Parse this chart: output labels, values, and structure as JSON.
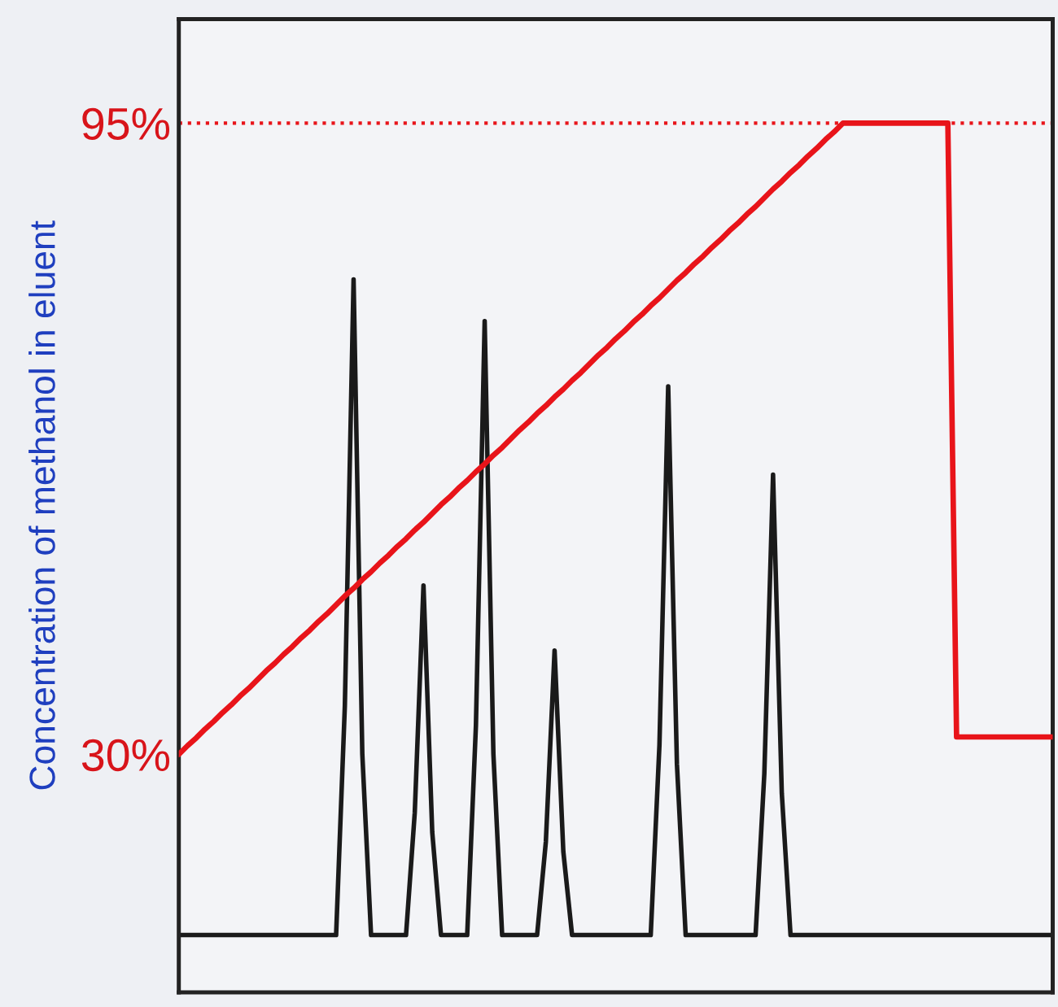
{
  "chart_data": {
    "type": "line",
    "ylabel": "Concentration of methanol in eluent",
    "ylim": [
      5.5,
      105.7
    ],
    "yticks": [
      {
        "value": 30,
        "label": "30%"
      },
      {
        "value": 95,
        "label": "95%"
      }
    ],
    "tick_labels": "y",
    "grid": false,
    "legend": false,
    "marker": "none",
    "line_style": "solid",
    "categories": [
      null,
      null,
      null,
      null,
      null,
      null,
      null,
      null,
      null,
      null,
      null,
      null,
      null,
      null,
      null,
      null,
      null,
      null,
      null,
      null,
      null,
      null,
      null,
      null,
      null,
      null,
      null,
      null,
      null,
      null,
      null,
      null,
      null,
      null,
      null,
      null,
      null,
      null,
      null,
      null,
      null,
      null,
      null,
      null,
      null,
      null,
      null,
      null,
      null,
      null,
      null,
      null,
      null,
      null,
      null,
      null,
      null,
      null,
      null,
      null,
      null,
      null,
      null,
      null,
      null,
      null,
      null,
      null,
      null,
      null,
      null,
      null,
      null,
      null,
      null,
      null,
      null,
      null,
      null,
      null,
      null,
      null,
      null,
      null,
      null,
      null,
      null,
      null,
      null,
      null,
      null,
      null,
      null,
      null,
      null,
      null,
      null,
      null,
      null,
      null,
      null
    ],
    "series": [
      {
        "color": "#e8141a",
        "values": [
          30.0,
          30.9,
          31.7,
          32.6,
          33.4,
          34.3,
          35.1,
          36.0,
          36.8,
          37.7,
          38.6,
          39.4,
          40.3,
          41.1,
          42.0,
          42.8,
          43.7,
          44.5,
          45.4,
          46.3,
          47.1,
          48.0,
          48.8,
          49.7,
          50.5,
          51.4,
          52.2,
          53.1,
          53.9,
          54.8,
          55.7,
          56.5,
          57.4,
          58.2,
          59.1,
          59.9,
          60.8,
          61.6,
          62.5,
          63.4,
          64.2,
          65.1,
          65.9,
          66.8,
          67.6,
          68.5,
          69.3,
          70.2,
          71.1,
          71.9,
          72.8,
          73.6,
          74.5,
          75.3,
          76.2,
          77.0,
          77.9,
          78.8,
          79.6,
          80.5,
          81.3,
          82.2,
          83.0,
          83.9,
          84.7,
          85.6,
          86.4,
          87.3,
          88.2,
          89.0,
          89.9,
          90.7,
          91.6,
          92.4,
          93.3,
          94.1,
          95.0,
          95,
          95,
          95,
          95,
          95,
          95,
          95,
          95,
          95,
          95,
          95,
          95,
          31.8,
          31.8,
          31.8,
          31.8,
          31.8,
          31.8,
          31.8,
          31.8,
          31.8,
          31.8,
          31.8,
          31.8
        ]
      },
      {
        "color": "#1a1a1a",
        "values": [
          11.4,
          11.4,
          11.4,
          11.4,
          11.4,
          11.4,
          11.4,
          11.4,
          11.4,
          11.4,
          11.4,
          11.4,
          11.4,
          11.4,
          11.4,
          11.4,
          11.4,
          11.4,
          11.4,
          35,
          78.9,
          30,
          11.4,
          11.4,
          11.4,
          11.4,
          11.4,
          24,
          47.4,
          22,
          11.4,
          11.4,
          11.4,
          11.4,
          33,
          74.6,
          30,
          11.4,
          11.4,
          11.4,
          11.4,
          11.4,
          21,
          40.7,
          20,
          11.4,
          11.4,
          11.4,
          11.4,
          11.4,
          11.4,
          11.4,
          11.4,
          11.4,
          11.4,
          31,
          67.9,
          29,
          11.4,
          11.4,
          11.4,
          11.4,
          11.4,
          11.4,
          11.4,
          11.4,
          11.4,
          28,
          58.8,
          26,
          11.4,
          11.4,
          11.4,
          11.4,
          11.4,
          11.4,
          11.4,
          11.4,
          11.4,
          11.4,
          11.4,
          11.4,
          11.4,
          11.4,
          11.4,
          11.4,
          11.4,
          11.4,
          11.4,
          11.4,
          11.4,
          11.4,
          11.4,
          11.4,
          11.4,
          11.4,
          11.4,
          11.4,
          11.4,
          11.4,
          11.4
        ]
      }
    ],
    "ref_lines": [
      {
        "axis": "y",
        "value": 95,
        "color": "#e8141a",
        "line_style": "dotted"
      }
    ]
  }
}
